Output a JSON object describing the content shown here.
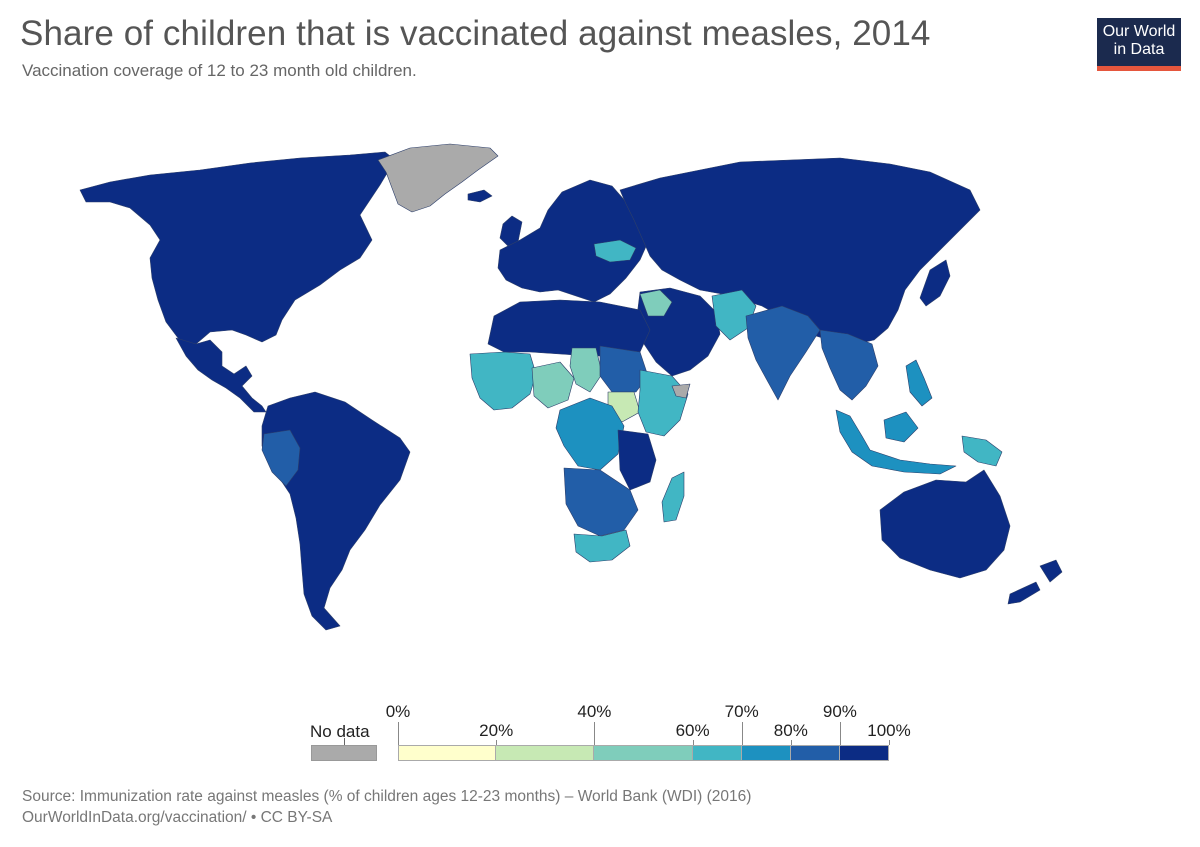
{
  "header": {
    "title": "Share of children that is vaccinated against measles, 2014",
    "subtitle": "Vaccination coverage of 12 to 23 month old children."
  },
  "logo": {
    "line1": "Our World",
    "line2": "in Data",
    "bg_color": "#1b2a4e",
    "accent_color": "#e5563d"
  },
  "legend": {
    "no_data_label": "No data",
    "no_data_color": "#aaaaaa",
    "bins": [
      {
        "from": 0,
        "to": 20,
        "color": "#ffffcc"
      },
      {
        "from": 20,
        "to": 40,
        "color": "#c7e9b4"
      },
      {
        "from": 40,
        "to": 60,
        "color": "#7fcdbb"
      },
      {
        "from": 60,
        "to": 70,
        "color": "#41b6c4"
      },
      {
        "from": 70,
        "to": 80,
        "color": "#1d91c0"
      },
      {
        "from": 80,
        "to": 90,
        "color": "#225ea8"
      },
      {
        "from": 90,
        "to": 100,
        "color": "#0c2c84"
      }
    ],
    "ticks": [
      {
        "value": 0,
        "label": "0%",
        "row": "upper"
      },
      {
        "value": 20,
        "label": "20%",
        "row": "lower"
      },
      {
        "value": 40,
        "label": "40%",
        "row": "upper"
      },
      {
        "value": 60,
        "label": "60%",
        "row": "lower"
      },
      {
        "value": 70,
        "label": "70%",
        "row": "upper"
      },
      {
        "value": 80,
        "label": "80%",
        "row": "lower"
      },
      {
        "value": 90,
        "label": "90%",
        "row": "upper"
      },
      {
        "value": 100,
        "label": "100%",
        "row": "lower"
      }
    ]
  },
  "regions": [
    {
      "name": "North America",
      "fill": "#0c2c84"
    },
    {
      "name": "Greenland",
      "fill": "#aaaaaa"
    },
    {
      "name": "Central America",
      "fill": "#0c2c84"
    },
    {
      "name": "South America",
      "fill": "#0c2c84"
    },
    {
      "name": "Andean patch",
      "fill": "#225ea8"
    },
    {
      "name": "Europe",
      "fill": "#0c2c84"
    },
    {
      "name": "Ukraine",
      "fill": "#41b6c4"
    },
    {
      "name": "North Africa",
      "fill": "#0c2c84"
    },
    {
      "name": "West Africa",
      "fill": "#41b6c4"
    },
    {
      "name": "Nigeria",
      "fill": "#7fcdbb"
    },
    {
      "name": "Chad",
      "fill": "#7fcdbb"
    },
    {
      "name": "Central Africa",
      "fill": "#1d91c0"
    },
    {
      "name": "Sudan",
      "fill": "#225ea8"
    },
    {
      "name": "Horn of Africa",
      "fill": "#41b6c4"
    },
    {
      "name": "South Sudan",
      "fill": "#c7e9b4"
    },
    {
      "name": "Somalia",
      "fill": "#aaaaaa"
    },
    {
      "name": "East Africa",
      "fill": "#0c2c84"
    },
    {
      "name": "Southern Africa",
      "fill": "#225ea8"
    },
    {
      "name": "South Africa",
      "fill": "#41b6c4"
    },
    {
      "name": "Madagascar",
      "fill": "#41b6c4"
    },
    {
      "name": "Middle East",
      "fill": "#0c2c84"
    },
    {
      "name": "Syria / Iraq",
      "fill": "#7fcdbb"
    },
    {
      "name": "Afghanistan / Pakistan",
      "fill": "#41b6c4"
    },
    {
      "name": "India",
      "fill": "#225ea8"
    },
    {
      "name": "Russia / Central Asia / China",
      "fill": "#0c2c84"
    },
    {
      "name": "Southeast Asia",
      "fill": "#225ea8"
    },
    {
      "name": "Indonesia",
      "fill": "#1d91c0"
    },
    {
      "name": "Papua New Guinea",
      "fill": "#41b6c4"
    },
    {
      "name": "Philippines",
      "fill": "#1d91c0"
    },
    {
      "name": "Japan",
      "fill": "#0c2c84"
    },
    {
      "name": "Australia",
      "fill": "#0c2c84"
    },
    {
      "name": "New Zealand",
      "fill": "#0c2c84"
    },
    {
      "name": "UK / Iceland",
      "fill": "#0c2c84"
    }
  ],
  "footer": {
    "source": "Source: Immunization rate against measles (% of children ages 12-23 months) – World Bank (WDI) (2016)",
    "url": "OurWorldInData.org/vaccination/ • CC BY-SA"
  }
}
